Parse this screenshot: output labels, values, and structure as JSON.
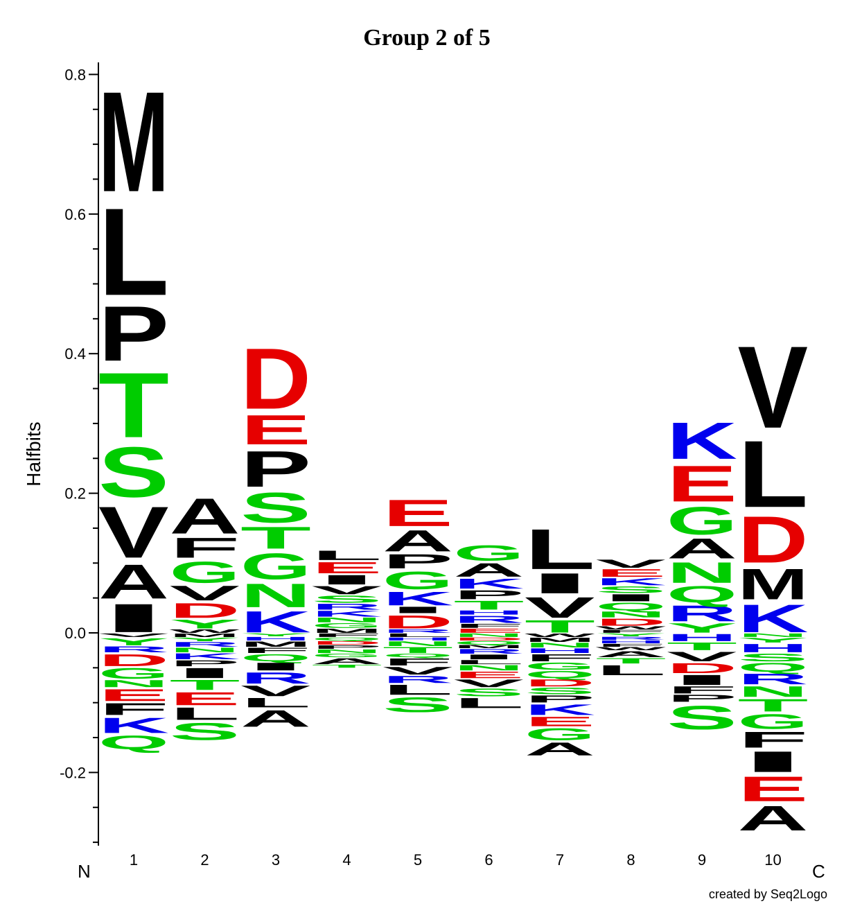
{
  "chart_data": {
    "type": "sequence-logo",
    "title": "Group 2 of 5",
    "ylabel": "Halfbits",
    "ylim": [
      -0.3,
      0.81
    ],
    "yticks": [
      {
        "value": 0.8,
        "label": "0.8"
      },
      {
        "value": 0.6,
        "label": "0.6"
      },
      {
        "value": 0.4,
        "label": "0.4"
      },
      {
        "value": 0.2,
        "label": "0.2"
      },
      {
        "value": 0.0,
        "label": "0.0"
      },
      {
        "value": -0.2,
        "label": "-0.2"
      }
    ],
    "n_terminus_label": "N",
    "c_terminus_label": "C",
    "credit": "created by Seq2Logo",
    "colors": {
      "black": "#000000",
      "green": "#00cc00",
      "red": "#e60000",
      "blue": "#0000ee"
    },
    "positions": [
      {
        "label": "1",
        "pos": [
          [
            "I",
            0.048
          ],
          [
            "A",
            0.058
          ],
          [
            "V",
            0.087
          ],
          [
            "S",
            0.085
          ],
          [
            "T",
            0.11
          ],
          [
            "P",
            0.093
          ],
          [
            "L",
            0.148
          ],
          [
            "M",
            0.17
          ]
        ],
        "neg": [
          [
            "V",
            0.006
          ],
          [
            "Y",
            0.012
          ],
          [
            "R",
            0.01
          ],
          [
            "D",
            0.02
          ],
          [
            "G",
            0.018
          ],
          [
            "N",
            0.012
          ],
          [
            "E",
            0.02
          ],
          [
            "F",
            0.02
          ],
          [
            "K",
            0.026
          ],
          [
            "Q",
            0.023
          ]
        ]
      },
      {
        "label": "2",
        "pos": [
          [
            "W",
            0.006
          ],
          [
            "Y",
            0.015
          ],
          [
            "D",
            0.025
          ],
          [
            "V",
            0.025
          ],
          [
            "G",
            0.036
          ],
          [
            "F",
            0.034
          ],
          [
            "A",
            0.06
          ]
        ],
        "neg": [
          [
            "M",
            0.006
          ],
          [
            "Y",
            0.006
          ],
          [
            "R",
            0.008
          ],
          [
            "N",
            0.008
          ],
          [
            "K",
            0.01
          ],
          [
            "P",
            0.01
          ],
          [
            "I",
            0.017
          ],
          [
            "T",
            0.017
          ],
          [
            "E",
            0.022
          ],
          [
            "L",
            0.021
          ],
          [
            "S",
            0.029
          ]
        ]
      },
      {
        "label": "3",
        "pos": [
          [
            "K",
            0.036
          ],
          [
            "N",
            0.04
          ],
          [
            "G",
            0.044
          ],
          [
            "T",
            0.037
          ],
          [
            "S",
            0.051
          ],
          [
            "P",
            0.061
          ],
          [
            "E",
            0.05
          ],
          [
            "D",
            0.103
          ]
        ],
        "neg": [
          [
            "Y",
            0.005
          ],
          [
            "H",
            0.006
          ],
          [
            "M",
            0.009
          ],
          [
            "F",
            0.009
          ],
          [
            "Q",
            0.012
          ],
          [
            "I",
            0.013
          ],
          [
            "R",
            0.019
          ],
          [
            "V",
            0.018
          ],
          [
            "L",
            0.016
          ],
          [
            "A",
            0.028
          ]
        ]
      },
      {
        "label": "4",
        "pos": [
          [
            "M",
            0.007
          ],
          [
            "G",
            0.008
          ],
          [
            "N",
            0.008
          ],
          [
            "K",
            0.01
          ],
          [
            "R",
            0.01
          ],
          [
            "S",
            0.012
          ],
          [
            "V",
            0.014
          ],
          [
            "I",
            0.016
          ],
          [
            "E",
            0.019
          ],
          [
            "L",
            0.016
          ]
        ],
        "neg": [
          [
            "F",
            0.006
          ],
          [
            "Q",
            0.005
          ],
          [
            "D",
            0.006
          ],
          [
            "P",
            0.006
          ],
          [
            "N",
            0.006
          ],
          [
            "G",
            0.006
          ],
          [
            "A",
            0.01
          ],
          [
            "T",
            0.005
          ]
        ]
      },
      {
        "label": "5",
        "pos": [
          [
            "R",
            0.006
          ],
          [
            "D",
            0.022
          ],
          [
            "I",
            0.011
          ],
          [
            "K",
            0.023
          ],
          [
            "G",
            0.03
          ],
          [
            "P",
            0.024
          ],
          [
            "A",
            0.036
          ],
          [
            "E",
            0.045
          ]
        ],
        "neg": [
          [
            "L",
            0.006
          ],
          [
            "H",
            0.005
          ],
          [
            "N",
            0.008
          ],
          [
            "T",
            0.01
          ],
          [
            "Q",
            0.006
          ],
          [
            "F",
            0.012
          ],
          [
            "V",
            0.013
          ],
          [
            "R",
            0.012
          ],
          [
            "L",
            0.017
          ],
          [
            "S",
            0.025
          ]
        ]
      },
      {
        "label": "6",
        "pos": [
          [
            "E",
            0.007
          ],
          [
            "F",
            0.007
          ],
          [
            "R",
            0.012
          ],
          [
            "H",
            0.007
          ],
          [
            "T",
            0.015
          ],
          [
            "P",
            0.015
          ],
          [
            "K",
            0.017
          ],
          [
            "A",
            0.023
          ],
          [
            "G",
            0.026
          ]
        ],
        "neg": [
          [
            "N",
            0.006
          ],
          [
            "D",
            0.005
          ],
          [
            "Q",
            0.006
          ],
          [
            "M",
            0.005
          ],
          [
            "R",
            0.008
          ],
          [
            "I",
            0.008
          ],
          [
            "L",
            0.007
          ],
          [
            "N",
            0.009
          ],
          [
            "E",
            0.011
          ],
          [
            "V",
            0.013
          ],
          [
            "S",
            0.013
          ],
          [
            "L",
            0.017
          ]
        ]
      },
      {
        "label": "7",
        "pos": [
          [
            "T",
            0.021
          ],
          [
            "V",
            0.035
          ],
          [
            "I",
            0.034
          ],
          [
            "L",
            0.068
          ]
        ],
        "neg": [
          [
            "W",
            0.006
          ],
          [
            "M",
            0.007
          ],
          [
            "N",
            0.008
          ],
          [
            "H",
            0.008
          ],
          [
            "F",
            0.012
          ],
          [
            "G",
            0.012
          ],
          [
            "Q",
            0.012
          ],
          [
            "D",
            0.012
          ],
          [
            "S",
            0.011
          ],
          [
            "P",
            0.012
          ],
          [
            "K",
            0.018
          ],
          [
            "E",
            0.016
          ],
          [
            "G",
            0.02
          ],
          [
            "A",
            0.022
          ]
        ]
      },
      {
        "label": "8",
        "pos": [
          [
            "F",
            0.005
          ],
          [
            "W",
            0.005
          ],
          [
            "D",
            0.012
          ],
          [
            "N",
            0.01
          ],
          [
            "Q",
            0.013
          ],
          [
            "I",
            0.012
          ],
          [
            "S",
            0.011
          ],
          [
            "K",
            0.012
          ],
          [
            "E",
            0.013
          ],
          [
            "V",
            0.014
          ]
        ],
        "neg": [
          [
            "Y",
            0.005
          ],
          [
            "R",
            0.005
          ],
          [
            "H",
            0.005
          ],
          [
            "F",
            0.005
          ],
          [
            "W",
            0.005
          ],
          [
            "A",
            0.01
          ],
          [
            "T",
            0.009
          ],
          [
            "L",
            0.017
          ]
        ]
      },
      {
        "label": "9",
        "pos": [
          [
            "Y",
            0.016
          ],
          [
            "R",
            0.027
          ],
          [
            "Q",
            0.028
          ],
          [
            "N",
            0.035
          ],
          [
            "A",
            0.034
          ],
          [
            "G",
            0.047
          ],
          [
            "E",
            0.061
          ],
          [
            "K",
            0.062
          ]
        ],
        "neg": [
          [
            "H",
            0.012
          ],
          [
            "T",
            0.013
          ],
          [
            "V",
            0.016
          ],
          [
            "D",
            0.017
          ],
          [
            "I",
            0.017
          ],
          [
            "F",
            0.012
          ],
          [
            "P",
            0.012
          ],
          [
            "S",
            0.04
          ]
        ]
      },
      {
        "label": "10",
        "pos": [
          [
            "K",
            0.047
          ],
          [
            "M",
            0.052
          ],
          [
            "D",
            0.079
          ],
          [
            "L",
            0.113
          ],
          [
            "V",
            0.139
          ]
        ],
        "neg": [
          [
            "N",
            0.006
          ],
          [
            "Y",
            0.008
          ],
          [
            "H",
            0.014
          ],
          [
            "S",
            0.013
          ],
          [
            "Q",
            0.015
          ],
          [
            "R",
            0.018
          ],
          [
            "N",
            0.018
          ],
          [
            "T",
            0.021
          ],
          [
            "G",
            0.025
          ],
          [
            "F",
            0.027
          ],
          [
            "I",
            0.035
          ],
          [
            "E",
            0.042
          ],
          [
            "A",
            0.042
          ]
        ]
      }
    ]
  }
}
